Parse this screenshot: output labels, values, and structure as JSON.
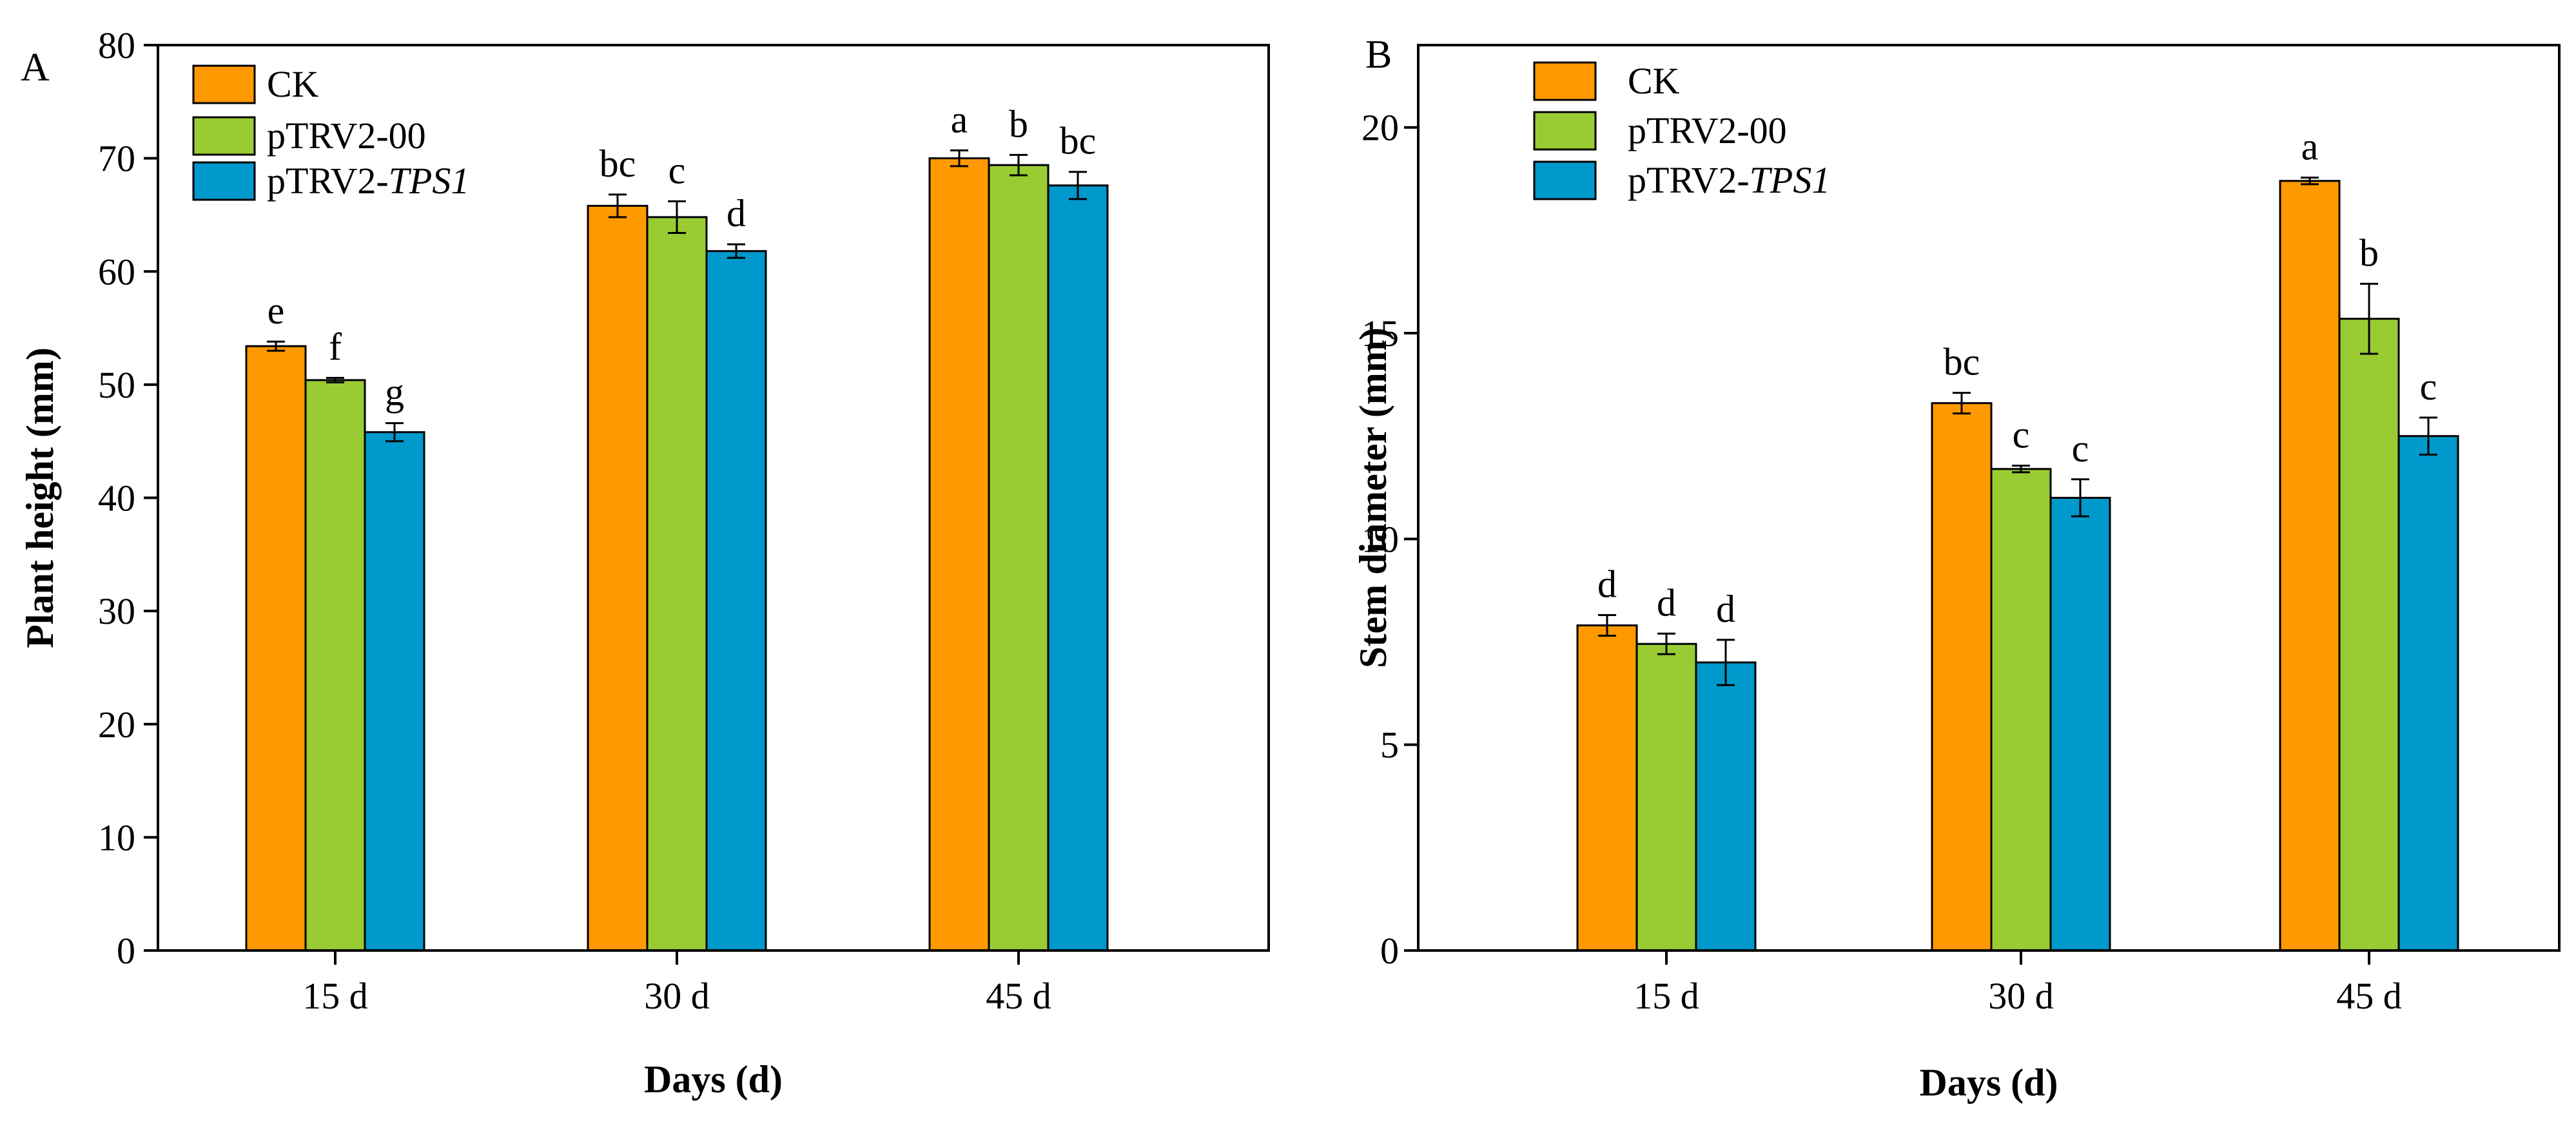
{
  "colors": {
    "ck": "#FF9900",
    "pTRV2_00": "#99CC33",
    "pTRV2_TPS1": "#0099CC",
    "stroke": "#000000"
  },
  "chart_data": [
    {
      "type": "bar",
      "panel_label": "A",
      "title": "",
      "xlabel": "Days (d)",
      "ylabel": "Plant height (mm)",
      "ylim": [
        0,
        80
      ],
      "yticks": [
        "0",
        "10",
        "20",
        "30",
        "40",
        "50",
        "60",
        "70",
        "80"
      ],
      "categories": [
        "15 d",
        "30 d",
        "45 d"
      ],
      "legend_position": "top-left",
      "series": [
        {
          "name": "CK",
          "name_plain": "CK",
          "name_italic": "",
          "values": [
            53.4,
            65.8,
            70.0
          ],
          "errors": [
            0.4,
            1.0,
            0.7
          ],
          "letters": [
            "e",
            "bc",
            "a"
          ]
        },
        {
          "name": "pTRV2-00",
          "name_plain": "pTRV2-00",
          "name_italic": "",
          "values": [
            50.4,
            64.8,
            69.4
          ],
          "errors": [
            0.2,
            1.4,
            0.9
          ],
          "letters": [
            "f",
            "c",
            "b"
          ]
        },
        {
          "name": "pTRV2-TPS1",
          "name_plain": "pTRV2-",
          "name_italic": "TPS1",
          "values": [
            45.8,
            61.8,
            67.6
          ],
          "errors": [
            0.8,
            0.6,
            1.2
          ],
          "letters": [
            "g",
            "d",
            "bc"
          ]
        }
      ]
    },
    {
      "type": "bar",
      "panel_label": "B",
      "title": "",
      "xlabel": "Days (d)",
      "ylabel": "Stem diameter (mm)",
      "ylim": [
        0,
        22
      ],
      "yticks": [
        "0",
        "5",
        "10",
        "15",
        "20"
      ],
      "categories": [
        "15 d",
        "30 d",
        "45 d"
      ],
      "legend_position": "top-left",
      "series": [
        {
          "name": "CK",
          "name_plain": "CK",
          "name_italic": "",
          "values": [
            7.9,
            13.3,
            18.7
          ],
          "errors": [
            0.25,
            0.25,
            0.08
          ],
          "letters": [
            "d",
            "bc",
            "a"
          ]
        },
        {
          "name": "pTRV2-00",
          "name_plain": "pTRV2-00",
          "name_italic": "",
          "values": [
            7.45,
            11.7,
            15.35
          ],
          "errors": [
            0.25,
            0.08,
            0.85
          ],
          "letters": [
            "d",
            "c",
            "b"
          ]
        },
        {
          "name": "pTRV2-TPS1",
          "name_plain": "pTRV2-",
          "name_italic": "TPS1",
          "values": [
            7.0,
            11.0,
            12.5
          ],
          "errors": [
            0.55,
            0.45,
            0.45
          ],
          "letters": [
            "d",
            "c",
            "c"
          ]
        }
      ]
    }
  ]
}
